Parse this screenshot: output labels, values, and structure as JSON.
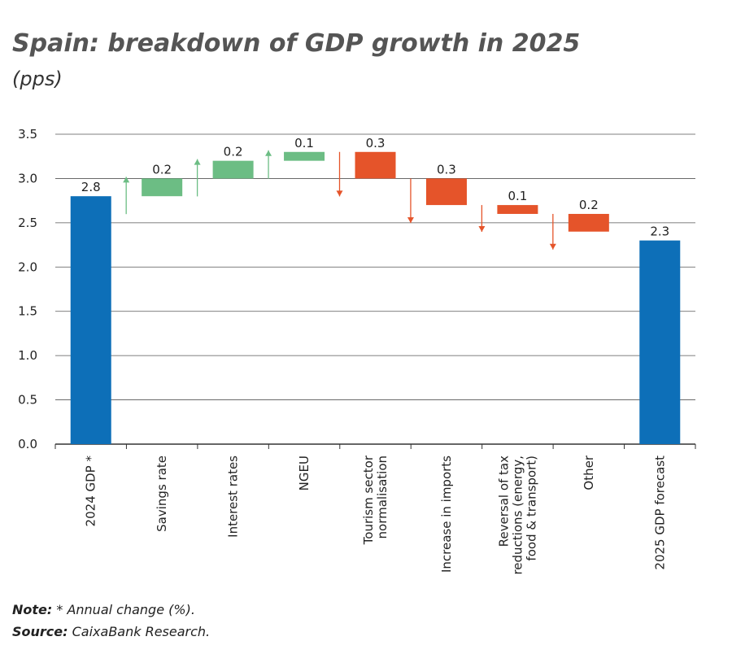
{
  "chart_data": {
    "type": "waterfall",
    "title": "Spain: breakdown of GDP growth in 2025",
    "subtitle": "(pps)",
    "categories": [
      "2024 GDP *",
      "Savings rate",
      "Interest rates",
      "NGEU",
      "Tourism sector\nnormalisation",
      "Increase in imports",
      "Reversal of tax\nreductions (energy,\nfood & transport)",
      "Other",
      "2025 GDP forecast"
    ],
    "measures": [
      "absolute",
      "relative",
      "relative",
      "relative",
      "relative",
      "relative",
      "relative",
      "relative",
      "absolute"
    ],
    "values": [
      2.8,
      0.2,
      0.2,
      0.1,
      -0.3,
      -0.3,
      -0.1,
      -0.2,
      2.3
    ],
    "value_labels": [
      "2.8",
      "0.2",
      "0.2",
      "0.1",
      "0.3",
      "0.3",
      "0.1",
      "0.2",
      "2.3"
    ],
    "colors": {
      "absolute": "#0d6fb8",
      "increase": "#6cbd84",
      "decrease": "#e5542a"
    },
    "ylim": [
      0,
      3.5
    ],
    "yticks": [
      {
        "value": 0,
        "label": "0.0"
      },
      0.5,
      {
        "value": 1,
        "label": "1.0"
      },
      1.5,
      {
        "value": 2,
        "label": "2.0"
      },
      2.5,
      {
        "value": 3,
        "label": "3.0"
      },
      3.5
    ],
    "grid": true,
    "note": {
      "label": "Note:",
      "text": " * Annual change (%)."
    },
    "source": {
      "label": "Source:",
      "text": " CaixaBank Research."
    }
  }
}
